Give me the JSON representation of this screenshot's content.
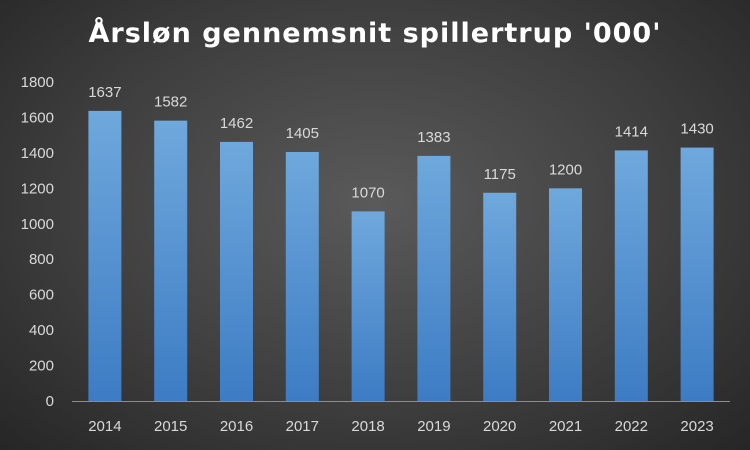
{
  "chart_data": {
    "type": "bar",
    "title": "Årsløn gennemsnit spillertrup '000'",
    "xlabel": "",
    "ylabel": "",
    "categories": [
      "2014",
      "2015",
      "2016",
      "2017",
      "2018",
      "2019",
      "2020",
      "2021",
      "2022",
      "2023"
    ],
    "values": [
      1637,
      1582,
      1462,
      1405,
      1070,
      1383,
      1175,
      1200,
      1414,
      1430
    ],
    "ylim": [
      0,
      1800
    ],
    "yticks": [
      "0",
      "200",
      "400",
      "600",
      "800",
      "1000",
      "1200",
      "1400",
      "1600",
      "1800"
    ],
    "grid": false,
    "legend": "none",
    "bar_color_top": "#6fa8dc",
    "bar_color_bottom": "#3d7cc4",
    "axis_color": "#8c8c8c"
  }
}
